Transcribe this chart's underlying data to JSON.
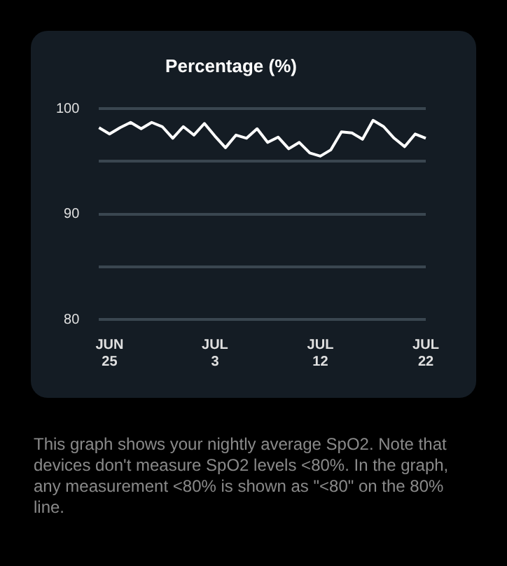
{
  "chart_data": {
    "type": "line",
    "title": "Percentage (%)",
    "categories": [
      null,
      "JUN 25",
      null,
      null,
      null,
      null,
      null,
      null,
      null,
      null,
      null,
      "JUL 3",
      null,
      null,
      null,
      null,
      null,
      null,
      null,
      null,
      null,
      "JUL 12",
      null,
      null,
      null,
      null,
      null,
      null,
      null,
      null,
      null,
      "JUL 22"
    ],
    "series": [
      {
        "color": "#ffffff",
        "values": [
          98.2,
          97.6,
          98.2,
          98.7,
          98.1,
          98.7,
          98.3,
          97.2,
          98.3,
          97.5,
          98.6,
          97.4,
          96.3,
          97.5,
          97.2,
          98.1,
          96.8,
          97.3,
          96.2,
          96.8,
          95.8,
          95.5,
          96.1,
          97.8,
          97.7,
          97.1,
          98.9,
          98.3,
          97.2,
          96.4,
          97.6,
          97.2
        ]
      }
    ],
    "ylim": [
      80,
      100
    ],
    "yticks": [
      80,
      {
        "value": 85,
        "label": null
      },
      90,
      {
        "value": 95,
        "label": null
      },
      100
    ],
    "grid": "y",
    "annotations": [
      "This graph shows your nightly average SpO2. Note that devices don't measure SpO2 levels <80%. In the graph, any measurement <80% is shown as \"<80\" on the 80% line."
    ]
  }
}
